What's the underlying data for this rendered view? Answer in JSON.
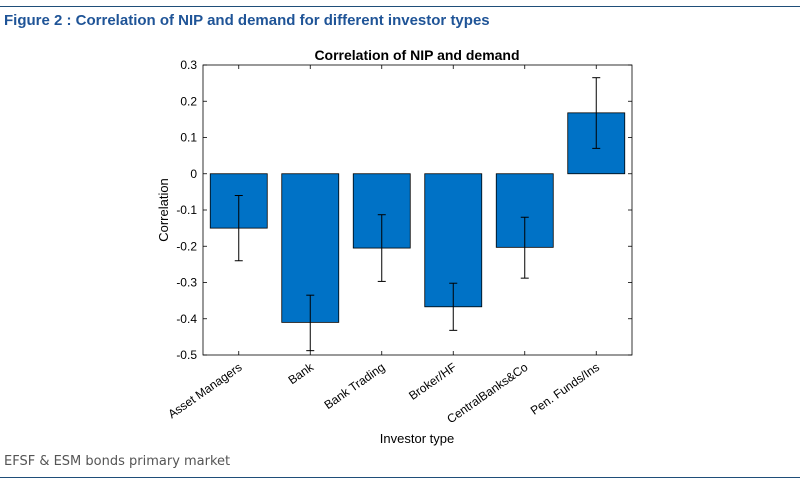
{
  "figure": {
    "title": "Figure 2 : Correlation of NIP and demand for different investor types",
    "source": "EFSF & ESM bonds primary market"
  },
  "colors": {
    "bar": "#0072c6",
    "rule": "#1f4e79",
    "title": "#1f5497"
  },
  "chart_data": {
    "type": "bar",
    "title": "Correlation of NIP and demand",
    "xlabel": "Investor type",
    "ylabel": "Correlation",
    "categories": [
      "Asset Managers",
      "Bank",
      "Bank Trading",
      "Broker/HF",
      "CentralBanks&Co",
      "Pen. Funds/Ins"
    ],
    "values": [
      -0.15,
      -0.41,
      -0.205,
      -0.367,
      -0.203,
      0.168
    ],
    "error_low": [
      -0.24,
      -0.488,
      -0.297,
      -0.432,
      -0.288,
      0.07
    ],
    "error_high": [
      -0.06,
      -0.335,
      -0.113,
      -0.302,
      -0.12,
      0.265
    ],
    "ylim": [
      -0.5,
      0.3
    ],
    "yticks": [
      0.3,
      0.2,
      0.1,
      0,
      -0.1,
      -0.2,
      -0.3,
      -0.4,
      -0.5
    ],
    "ytick_labels": [
      "0.3",
      "0.2",
      "0.1",
      "0",
      "-0.1",
      "-0.2",
      "-0.3",
      "-0.4",
      "-0.5"
    ],
    "grid": false,
    "legend": "none"
  }
}
